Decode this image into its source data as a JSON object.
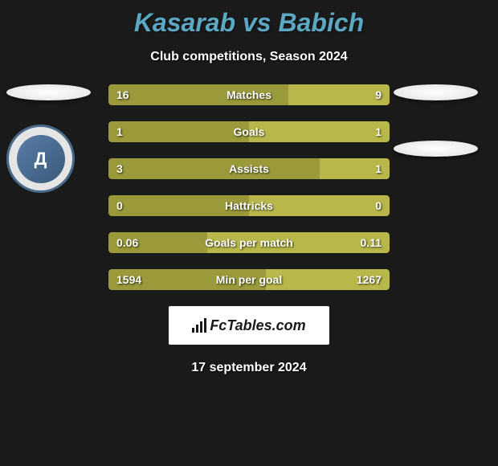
{
  "title": "Kasarab vs Babich",
  "subtitle": "Club competitions, Season 2024",
  "colors": {
    "player1": "#9a9a3a",
    "player2": "#b8b84a",
    "background": "#1a1a1a",
    "title_color": "#5ba8c4",
    "text_color": "#ffffff"
  },
  "stats": [
    {
      "label": "Matches",
      "left_value": "16",
      "right_value": "9",
      "left_percent": 64,
      "right_percent": 36
    },
    {
      "label": "Goals",
      "left_value": "1",
      "right_value": "1",
      "left_percent": 50,
      "right_percent": 50
    },
    {
      "label": "Assists",
      "left_value": "3",
      "right_value": "1",
      "left_percent": 75,
      "right_percent": 25
    },
    {
      "label": "Hattricks",
      "left_value": "0",
      "right_value": "0",
      "left_percent": 50,
      "right_percent": 50
    },
    {
      "label": "Goals per match",
      "left_value": "0.06",
      "right_value": "0.11",
      "left_percent": 35,
      "right_percent": 65
    },
    {
      "label": "Min per goal",
      "left_value": "1594",
      "right_value": "1267",
      "left_percent": 56,
      "right_percent": 44
    }
  ],
  "logo_text": "FcTables.com",
  "date": "17 september 2024",
  "badge_text": "Д"
}
